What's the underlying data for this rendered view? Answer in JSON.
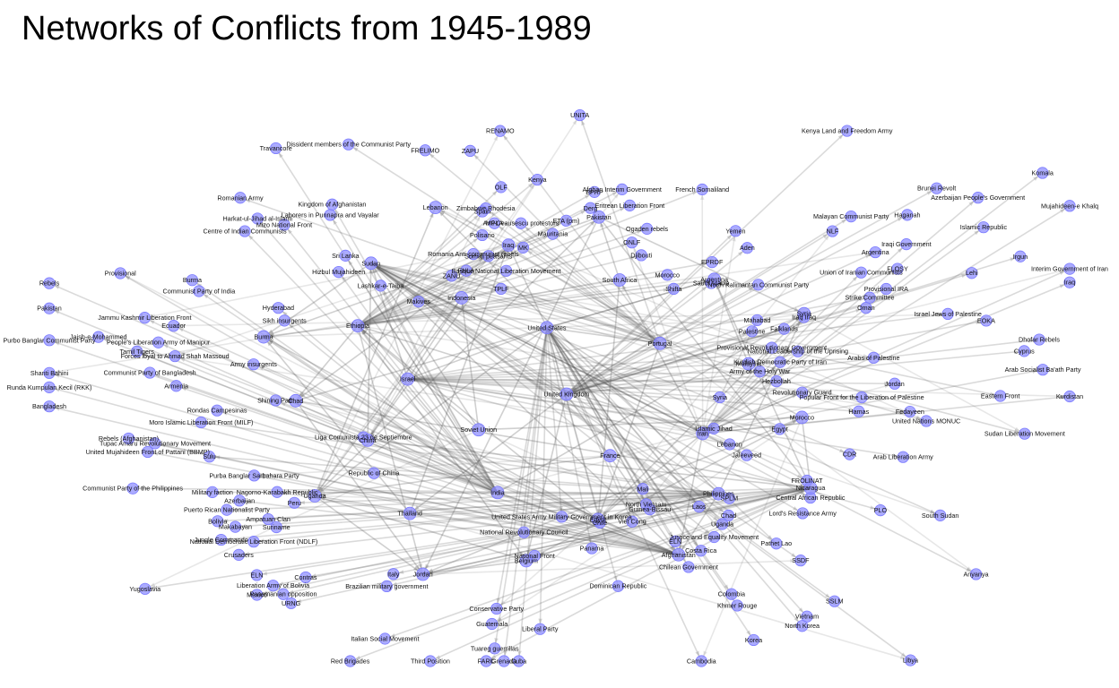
{
  "title": "Networks of Conflicts from 1945-1989",
  "colors": {
    "node": "#8f8fff",
    "node_stroke": "#7a7aff",
    "edge": "#555555",
    "text": "#111111",
    "background": "#ffffff"
  },
  "hubs": [
    "United Kingdom",
    "Soviet Union",
    "United States",
    "France",
    "Israel",
    "Portugal",
    "India",
    "Indonesia",
    "Iran",
    "China",
    "South Africa",
    "Egypt",
    "Ethiopia",
    "Malaysia",
    "Thailand",
    "Iraq",
    "Philippines",
    "Chad",
    "Argentina",
    "Belgium",
    "Sudan",
    "Morocco",
    "Uganda",
    "Pakistan",
    "Afghanistan",
    "Burma",
    "Syria",
    "Jordan",
    "Lebanon",
    "Nicaragua"
  ],
  "groups": [
    {
      "hub": "Portugal",
      "labels": [
        "ZANU",
        "MK",
        "ZAPU",
        "Zimbabwe Rhodesia",
        "RENAMO",
        "FRELIMO",
        "Makives",
        "Dissident members of the Communist Party",
        "Romanian Army",
        "Romania Anti-communist rebels",
        "Anti-Ceausescu protestors",
        "FNLA",
        "MPLA",
        "UNITA"
      ]
    },
    {
      "hub": "India",
      "labels": [
        "Laborers in Punnapra and Vayalar",
        "People's Liberation Army of Manipur",
        "Travancore",
        "Communist Party of India",
        "Pakistan",
        "Purbo Banglar Communist Party",
        "Jammu Kashmir Liberation Front",
        "Jaish-e-Mohammed",
        "Hizbul Mujahideen",
        "Harkat-ul-Jihad al-Islami",
        "Centre of Indian Communists",
        "Lashkar-e-Taiba",
        "Hyderabad",
        "Sikh insurgents",
        "Mizo National Front",
        "Tamil Tigers",
        "Sri Lanka",
        "Provisional",
        "Kingdom of Afghanistan",
        "Burma"
      ]
    },
    {
      "hub": "Afghanistan",
      "labels": [
        "Rebels (Afghanistan)",
        "Forces loyal to Ahmad Shah Massoud",
        "Purba Banglar Sarbahara Party",
        "Shanti Bahini",
        "Army insurgents",
        "Rebels",
        "Bangladesh",
        "Communist Party of Bangladesh",
        "United Mujahideen Front of Pattani (BBMP)",
        "Runda Kumpulan Kecil (RKK)",
        "Armenia",
        "Azerbaijan",
        "Nagorno-Karabakh Republic",
        "Ecuador",
        "Tupac Amaru Revolutionary Movement",
        "Shining Path",
        "Rondas Campesinas"
      ]
    },
    {
      "hub": "Philippines",
      "labels": [
        "Sulu",
        "Moro Islamic Liberation Front (MILF)",
        "Ampatuan Clan",
        "Makabayan",
        "Communist Party of the Philippines",
        "Military faction",
        "National Democratic Liberation Front (NDLF)",
        "Republic of China",
        "Panamanian opposition",
        "Mexico",
        "Puerto Rican Nationalist Party",
        "Liberation Army of Bolivia",
        "Bolivia",
        "Liga Comunista 23 de Septiembre"
      ]
    },
    {
      "hub": "Nicaragua",
      "labels": [
        "Contras",
        "Crusaders",
        "Yugoslavia",
        "URNG",
        "Guatemala",
        "Jungle Commando",
        "Suriname",
        "Brazilian military government",
        "Italian Social Movement",
        "Third Position",
        "Red Brigades",
        "National Front",
        "Italy",
        "Peru",
        "FARC",
        "ELN"
      ]
    },
    {
      "hub": "Ethiopia",
      "labels": [
        "OLF",
        "TPLF",
        "ONLF",
        "EPRDF",
        "EPRP",
        "Derg",
        "Afghan Interim Government",
        "Kenya",
        "Eritrean Liberation Front",
        "Somali peasants",
        "Shifta",
        "Ogaden rebels",
        "French Somaliland",
        "Djibouti",
        "ETA (pm)",
        "Spain",
        "Basque National Liberation Movement",
        "Mauritania",
        "Polisario",
        "Morocco"
      ]
    },
    {
      "hub": "United Kingdom",
      "labels": [
        "Provisional IRA",
        "Argentina",
        "Falklands",
        "Oman",
        "Dhofar Rebels",
        "Saudi Arabia",
        "Yemen",
        "Aden",
        "NLF",
        "FLOSY",
        "North Kalimantan Communist Party",
        "Brunei Revolt",
        "Malayan Communist Party",
        "Kenya Land and Freedom Army",
        "Cyprus",
        "EOKA",
        "Palestine",
        "Irgun",
        "Lehi",
        "Haganah"
      ]
    },
    {
      "hub": "Israel",
      "labels": [
        "PLO",
        "Hezbollah",
        "Lebanon",
        "Jordan",
        "Egypt",
        "Syria",
        "Israel Jews of Palestine",
        "Arabs of Palestine",
        "Army of the Holy War",
        "Arab Liberation Army",
        "Strike Committee",
        "Popular Front for the Liberation of Palestine",
        "Hamas",
        "Islamic Jihad",
        "National Leadership of the Uprising"
      ]
    },
    {
      "hub": "Sudan",
      "labels": [
        "SPLM",
        "SSLM",
        "SSDF",
        "Anyanya",
        "Eastern Front",
        "Jaleeveed",
        "Justice and Equality Movement",
        "Sudan Liberation Movement",
        "Chad",
        "FROLINAT",
        "CDR",
        "Libya",
        "Uganda",
        "Lord's Resistance Army",
        "Central African Republic",
        "United Nations MONUC",
        "South Sudan"
      ]
    },
    {
      "hub": "Iran",
      "labels": [
        "Kurdish Democratic Party of Iran",
        "Komala",
        "Mujahideen-e Khalq",
        "Fedayeen",
        "Iraq",
        "Kurdistan",
        "Interim Government of Iran",
        "Islamic Republic",
        "Revolutionary Guard",
        "Provisional Revolutionary Government",
        "Mahabad",
        "Azerbaijan People's Government",
        "Union of Iranian Communists",
        "Arab Socialist Ba'ath Party",
        "Iraqi Government",
        "Iraq Iraq"
      ]
    },
    {
      "hub": "United States",
      "labels": [
        "Vietnam",
        "North Vietnam",
        "Viet Cong",
        "Cambodia",
        "Khmer Rouge",
        "Laos",
        "Pathet Lao",
        "Grenada",
        "Panama",
        "Dominican Republic",
        "Cuba",
        "Korea",
        "North Korea",
        "United States Army Military Government in Korea",
        "Conservative Party",
        "Liberal Party",
        "Colombia",
        "ELN",
        "Chilean Government",
        "Chile",
        "Guinea-Bissau",
        "Mali",
        "Tuareg guerrillas",
        "Costa Rica",
        "National Revolutionary Council"
      ]
    }
  ]
}
